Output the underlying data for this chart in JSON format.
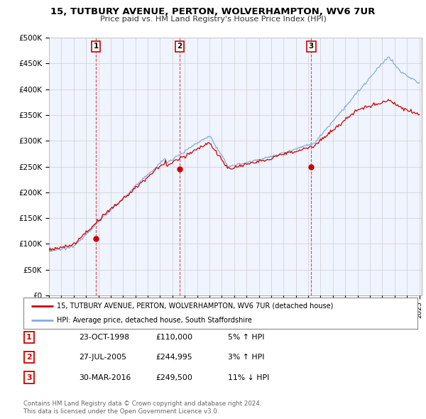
{
  "title1": "15, TUTBURY AVENUE, PERTON, WOLVERHAMPTON, WV6 7UR",
  "title2": "Price paid vs. HM Land Registry's House Price Index (HPI)",
  "ylim": [
    0,
    500000
  ],
  "yticks": [
    0,
    50000,
    100000,
    150000,
    200000,
    250000,
    300000,
    350000,
    400000,
    450000,
    500000
  ],
  "ytick_labels": [
    "£0",
    "£50K",
    "£100K",
    "£150K",
    "£200K",
    "£250K",
    "£300K",
    "£350K",
    "£400K",
    "£450K",
    "£500K"
  ],
  "sale_dates": [
    1998.81,
    2005.57,
    2016.25
  ],
  "sale_prices": [
    110000,
    244995,
    249500
  ],
  "sale_labels": [
    "1",
    "2",
    "3"
  ],
  "vline_color": "#cc0000",
  "dot_color": "#cc0000",
  "legend_line1_label": "15, TUTBURY AVENUE, PERTON, WOLVERHAMPTON, WV6 7UR (detached house)",
  "legend_line2_label": "HPI: Average price, detached house, South Staffordshire",
  "table_entries": [
    {
      "num": "1",
      "date": "23-OCT-1998",
      "price": "£110,000",
      "hpi": "5% ↑ HPI"
    },
    {
      "num": "2",
      "date": "27-JUL-2005",
      "price": "£244,995",
      "hpi": "3% ↑ HPI"
    },
    {
      "num": "3",
      "date": "30-MAR-2016",
      "price": "£249,500",
      "hpi": "11% ↓ HPI"
    }
  ],
  "footer1": "Contains HM Land Registry data © Crown copyright and database right 2024.",
  "footer2": "This data is licensed under the Open Government Licence v3.0.",
  "red_line_color": "#cc0000",
  "blue_line_color": "#88aadd",
  "chart_bg": "#f0f4ff",
  "bg_color": "#ffffff",
  "grid_color": "#cccccc"
}
